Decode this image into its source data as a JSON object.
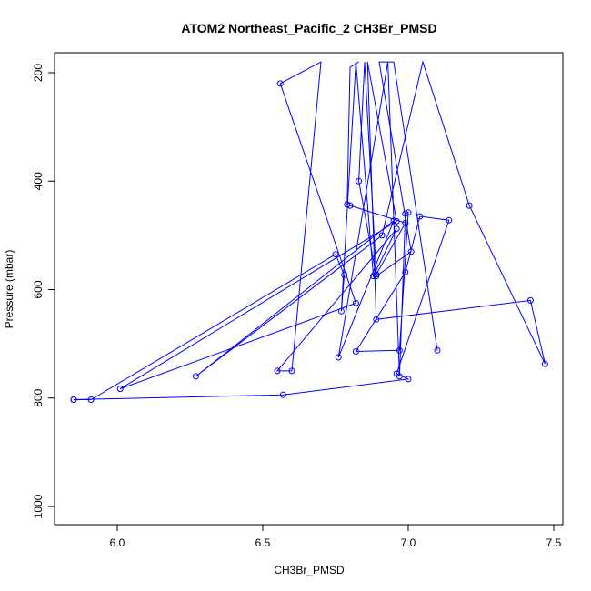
{
  "chart_data": {
    "type": "line",
    "title": "ATOM2 Northeast_Pacific_2 CH3Br_PMSD",
    "xlabel": "CH3Br_PMSD",
    "ylabel": "Pressure (mbar)",
    "xlim": [
      5.8,
      7.5
    ],
    "ylim": [
      1000,
      200
    ],
    "y_inverted": true,
    "x_ticks": [
      6.0,
      6.5,
      7.0,
      7.5
    ],
    "x_tick_labels": [
      "6.0",
      "6.5",
      "7.0",
      "7.5"
    ],
    "y_ticks": [
      200,
      400,
      600,
      800,
      1000
    ],
    "y_tick_labels": [
      "200",
      "400",
      "600",
      "800",
      "1000"
    ],
    "grid": false,
    "legend": "none",
    "marker": "open-circle",
    "colors": {
      "series": "#0000ff",
      "axis": "#000000",
      "background": "#ffffff"
    },
    "series": [
      {
        "points": [
          {
            "x": 5.85,
            "y": 803
          },
          {
            "x": 5.91,
            "y": 803
          },
          {
            "x": 6.75,
            "y": 535
          },
          {
            "x": 6.78,
            "y": 573
          },
          {
            "x": 6.77,
            "y": 640
          },
          {
            "x": 6.82,
            "y": 180
          },
          {
            "x": 6.88,
            "y": 575
          },
          {
            "x": 6.96,
            "y": 488
          },
          {
            "x": 6.55,
            "y": 750
          },
          {
            "x": 6.6,
            "y": 750
          },
          {
            "x": 6.7,
            "y": 180
          },
          {
            "x": 6.56,
            "y": 220
          },
          {
            "x": 6.82,
            "y": 625
          },
          {
            "x": 6.01,
            "y": 783
          },
          {
            "x": 6.96,
            "y": 474
          },
          {
            "x": 6.86,
            "y": 180
          },
          {
            "x": 6.89,
            "y": 655
          },
          {
            "x": 7.42,
            "y": 620
          },
          {
            "x": 7.47,
            "y": 737
          },
          {
            "x": 7.21,
            "y": 445
          },
          {
            "x": 7.05,
            "y": 180
          },
          {
            "x": 6.91,
            "y": 500
          },
          {
            "x": 6.27,
            "y": 760
          },
          {
            "x": 6.95,
            "y": 473
          },
          {
            "x": 6.76,
            "y": 725
          },
          {
            "x": 6.93,
            "y": 180
          },
          {
            "x": 6.97,
            "y": 760
          },
          {
            "x": 6.99,
            "y": 460
          },
          {
            "x": 7.0,
            "y": 458
          },
          {
            "x": 6.97,
            "y": 712
          },
          {
            "x": 6.82,
            "y": 714
          },
          {
            "x": 6.99,
            "y": 568
          },
          {
            "x": 7.04,
            "y": 465
          },
          {
            "x": 7.14,
            "y": 472
          },
          {
            "x": 6.96,
            "y": 755
          },
          {
            "x": 7.0,
            "y": 765
          },
          {
            "x": 6.57,
            "y": 794
          },
          {
            "x": 5.85,
            "y": 803
          }
        ]
      },
      {
        "points": [
          {
            "x": 6.83,
            "y": 180
          },
          {
            "x": 6.8,
            "y": 190
          },
          {
            "x": 6.79,
            "y": 443
          },
          {
            "x": 6.8,
            "y": 445
          },
          {
            "x": 6.99,
            "y": 477
          },
          {
            "x": 6.89,
            "y": 572
          },
          {
            "x": 6.85,
            "y": 180
          },
          {
            "x": 6.83,
            "y": 400
          },
          {
            "x": 6.89,
            "y": 575
          },
          {
            "x": 7.01,
            "y": 530
          },
          {
            "x": 6.9,
            "y": 180
          },
          {
            "x": 6.95,
            "y": 180
          },
          {
            "x": 7.1,
            "y": 712
          }
        ]
      }
    ]
  }
}
